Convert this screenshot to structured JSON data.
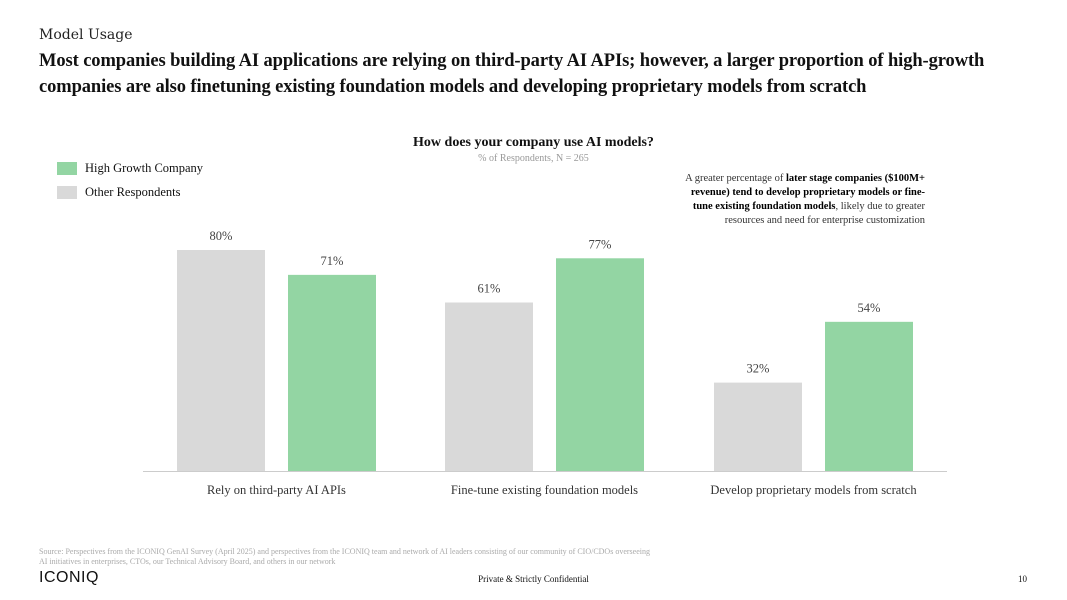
{
  "section": "Model Usage",
  "headline": "Most companies building AI applications are relying on third-party AI APIs; however, a larger proportion of high-growth companies are also finetuning existing foundation models and developing proprietary models from scratch",
  "annotation": {
    "pre": "A greater percentage of ",
    "bold": "later stage companies ($100M+ revenue) tend to develop proprietary models or fine-tune existing foundation models",
    "post": ", likely due to greater resources and need for enterprise customization"
  },
  "source": "Source: Perspectives from the ICONIQ GenAI Survey (April 2025) and perspectives from the ICONIQ team and network of AI leaders consisting of our community of CIO/CDOs overseeing AI initiatives in enterprises, CTOs, our Technical Advisory Board, and others in our network",
  "footer": {
    "logo": "ICONIQ",
    "confidential": "Private & Strictly Confidential",
    "page": "10"
  },
  "chart_data": {
    "type": "bar",
    "title": "How does your company use AI models?",
    "subtitle": "% of Respondents, N = 265",
    "categories": [
      "Rely on third-party AI APIs",
      "Fine-tune existing foundation models",
      "Develop proprietary models from scratch"
    ],
    "series": [
      {
        "name": "Other Respondents",
        "values": [
          80,
          61,
          32
        ],
        "color": "#d9d9d9"
      },
      {
        "name": "High Growth Company",
        "values": [
          71,
          77,
          54
        ],
        "color": "#93d5a3"
      }
    ],
    "legend_order": [
      "High Growth Company",
      "Other Respondents"
    ],
    "legend_placement": "top-left",
    "value_format": "%",
    "ylim": [
      0,
      80
    ],
    "grid": false
  }
}
